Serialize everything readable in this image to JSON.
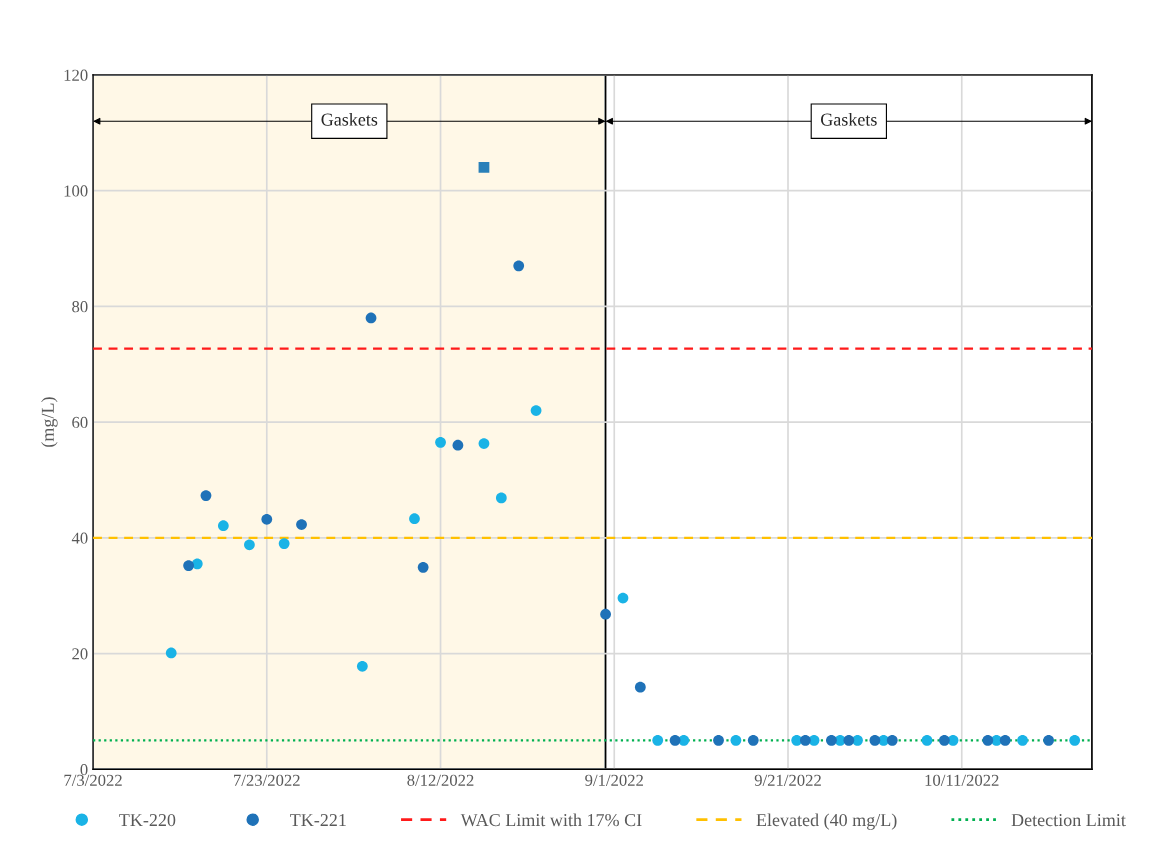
{
  "chart_data": {
    "type": "scatter",
    "ylabel": "(mg/L)",
    "xlim": [
      "2022-07-03",
      "2022-10-26"
    ],
    "xticks": [
      {
        "value": "2022-07-03",
        "label": "7/3/2022"
      },
      {
        "value": "2022-07-23",
        "label": "7/23/2022"
      },
      {
        "value": "2022-08-12",
        "label": "8/12/2022"
      },
      {
        "value": "2022-09-01",
        "label": "9/1/2022"
      },
      {
        "value": "2022-09-21",
        "label": "9/21/2022"
      },
      {
        "value": "2022-10-11",
        "label": "10/11/2022"
      }
    ],
    "ylim": [
      0,
      120
    ],
    "yticks": [
      0,
      20,
      40,
      60,
      80,
      100,
      120
    ],
    "grid": true,
    "legend": "bottom",
    "marker": "circle",
    "series": [
      {
        "name": "TK-220",
        "color": "#1ab3e6",
        "x": [
          "2022-07-12",
          "2022-07-15",
          "2022-07-18",
          "2022-07-21",
          "2022-07-25",
          "2022-08-03",
          "2022-08-09",
          "2022-08-12",
          "2022-08-17",
          "2022-08-19",
          "2022-08-23",
          "2022-09-02",
          "2022-09-06",
          "2022-09-09",
          "2022-09-15",
          "2022-09-22",
          "2022-09-24",
          "2022-09-27",
          "2022-09-29",
          "2022-10-02",
          "2022-10-07",
          "2022-10-10",
          "2022-10-15",
          "2022-10-18",
          "2022-10-24"
        ],
        "values": [
          20.1,
          35.5,
          42.1,
          38.8,
          39.0,
          17.8,
          43.3,
          56.5,
          56.3,
          46.9,
          62.0,
          29.6,
          5,
          5,
          5,
          5,
          5,
          5,
          5,
          5,
          5,
          5,
          5,
          5,
          5
        ]
      },
      {
        "name": "TK-221",
        "color": "#1f72b8",
        "x": [
          "2022-07-14",
          "2022-07-16",
          "2022-07-23",
          "2022-07-27",
          "2022-08-04",
          "2022-08-10",
          "2022-08-14",
          "2022-08-21",
          "2022-08-31",
          "2022-09-04",
          "2022-09-08",
          "2022-09-13",
          "2022-09-17",
          "2022-09-23",
          "2022-09-26",
          "2022-09-28",
          "2022-10-01",
          "2022-10-03",
          "2022-10-09",
          "2022-10-14",
          "2022-10-16",
          "2022-10-21"
        ],
        "values": [
          35.2,
          47.3,
          43.2,
          42.3,
          78.0,
          34.9,
          56.0,
          87.0,
          26.8,
          14.2,
          5,
          5,
          5,
          5,
          5,
          5,
          5,
          5,
          5,
          5,
          5,
          5
        ]
      },
      {
        "color": "#2a80b9",
        "marker": "square",
        "x": [
          "2022-08-17"
        ],
        "values": [
          104
        ]
      }
    ],
    "ref_lines": [
      {
        "axis": "y",
        "value": 72.7,
        "label": "WAC Limit with 17% CI",
        "color": "#ff1a1a",
        "line_style": "dashed"
      },
      {
        "axis": "y",
        "value": 40,
        "label": "Elevated (40 mg/L)",
        "color": "#ffc000",
        "line_style": "dashed"
      },
      {
        "axis": "y",
        "value": 5,
        "label": "Detection Limit",
        "color": "#00b050",
        "line_style": "dotted"
      }
    ],
    "bands": [
      {
        "axis": "x",
        "from": "2022-07-03",
        "to": "2022-08-31",
        "label": "Gaskets",
        "color": "#fff8e7"
      },
      {
        "axis": "x",
        "from": "2022-08-31",
        "to": "2022-10-26",
        "label": "Gaskets",
        "color": "#ffffff"
      }
    ]
  }
}
